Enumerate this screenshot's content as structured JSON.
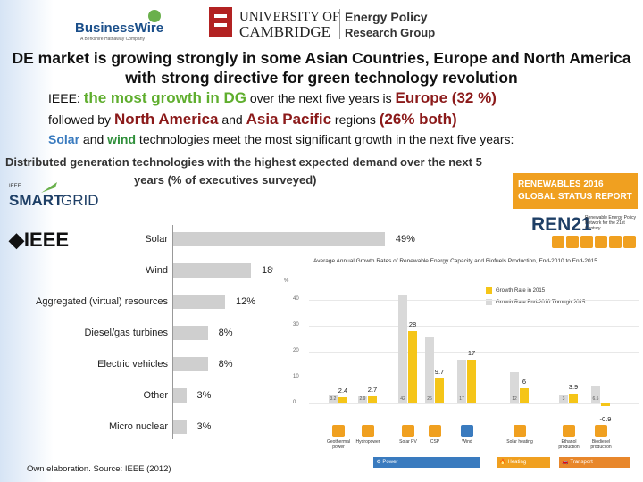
{
  "logos": {
    "business_wire": "BusinessWire",
    "business_wire_tag": "A Berkshire Hathaway Company",
    "cambridge_line1": "UNIVERSITY OF",
    "cambridge_line2": "CAMBRIDGE",
    "epr_line1": "Energy Policy",
    "epr_line2": "Research Group"
  },
  "title": "DE market is growing strongly in some Asian Countries, Europe and North America with strong directive for green technology revolution",
  "line1": {
    "p1": "IEEE: ",
    "h1": "the most growth in DG",
    "p2": " over the next five years is ",
    "h2": "Europe (32 %)"
  },
  "line2": {
    "p1": "followed by ",
    "h1": "North America",
    "p2": " and ",
    "h2": "Asia Pacific",
    "p3": " regions ",
    "h3": "(26% both)"
  },
  "line3": {
    "h1": "Solar",
    "p1": " and ",
    "h2": "wind",
    "p2": " technologies meet the most significant growth in the next five years:"
  },
  "chart_head": {
    "line1": "Distributed generation technologies with the highest expected demand over the next 5",
    "line2": "years (% of executives surveyed)"
  },
  "smartgrid": {
    "ieee_small": "IEEE",
    "smart": "SMART",
    "grid": "GRID"
  },
  "ieee_logo": "IEEE",
  "source": "Own elaboration. Source: IEEE (2012)",
  "chart_data": [
    {
      "type": "bar",
      "orientation": "horizontal",
      "title": "Distributed generation technologies with the highest expected demand over the next 5 years (% of executives surveyed)",
      "categories": [
        "Solar",
        "Wind",
        "Aggregated (virtual) resources",
        "Diesel/gas turbines",
        "Electric vehicles",
        "Other",
        "Micro nuclear"
      ],
      "values": [
        49,
        18,
        12,
        8,
        8,
        3,
        3
      ],
      "value_labels": [
        "49%",
        "18%",
        "12%",
        "8%",
        "8%",
        "3%",
        "3%"
      ],
      "xlim": [
        0,
        60
      ]
    },
    {
      "type": "bar",
      "title": "Average Annual Growth Rates of Renewable Energy Capacity and Biofuels Production, End-2010 to End-2015",
      "ylabel": "%",
      "yticks": [
        "0",
        "10",
        "20",
        "30",
        "40"
      ],
      "ylim": [
        -2,
        45
      ],
      "categories": [
        "Geothermal power",
        "Hydropower",
        "Solar PV",
        "CSP",
        "Wind",
        "Solar heating",
        "Ethanol production",
        "Biodiesel production"
      ],
      "groups": [
        "Power",
        "Heating",
        "Transport"
      ],
      "series": [
        {
          "name": "Growth Rate in 2015",
          "color": "#f5c518",
          "values": [
            2.4,
            2.7,
            28,
            9.7,
            17,
            6,
            3.9,
            -0.9
          ]
        },
        {
          "name": "Growth Rate End-2010 Through 2015",
          "color": "#d9d9d9",
          "values": [
            3.2,
            2.9,
            42,
            26,
            17,
            12,
            3,
            6.5
          ]
        }
      ],
      "value_labels": [
        "2.4",
        "2.7",
        "28",
        "9.7",
        "17",
        "6",
        "3.9",
        "-0.9"
      ],
      "base_labels": [
        "3.2",
        "2.9",
        "42",
        "26",
        "17",
        "12",
        "3",
        "6.5"
      ]
    }
  ],
  "ren": {
    "line1": "RENEWABLES 2016",
    "line2": "GLOBAL STATUS REPORT",
    "ren21": "REN21",
    "ren21_sub": "Renewable Energy Policy Network for the 21st Century"
  },
  "growth_chart": {
    "title": "Average Annual Growth Rates of Renewable Energy Capacity and Biofuels Production, End-2010 to End-2015",
    "y_symbol": "%",
    "legend_a": "Growth Rate in 2015",
    "legend_b": "Growth Rate End-2010 Through 2015",
    "cat_labels": [
      "Geothermal power",
      "Hydropower",
      "Solar PV",
      "CSP",
      "Wind",
      "Solar heating",
      "Ethanol production",
      "Biodiesel production"
    ],
    "group_power": "Power",
    "group_heating": "Heating",
    "group_transport": "Transport"
  },
  "colors": {
    "yellow": "#f5c518",
    "gray": "#d9d9d9",
    "orange": "#f0a020",
    "navy": "#1e3f66",
    "red": "#8b1a1a",
    "green": "#5fae2e"
  }
}
